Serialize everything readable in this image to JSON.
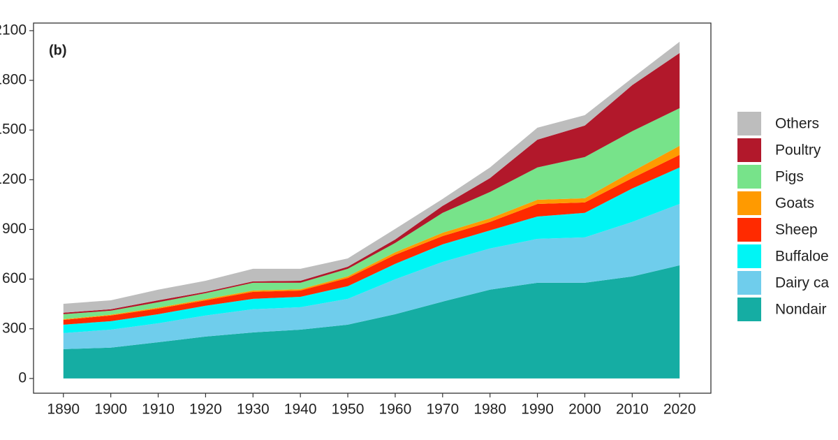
{
  "chart_data": {
    "type": "stacked-area",
    "annotation": "(b)",
    "x": [
      1890,
      1900,
      1910,
      1920,
      1930,
      1940,
      1950,
      1960,
      1970,
      1980,
      1990,
      2000,
      2010,
      2020
    ],
    "xlim": [
      1883.7,
      2026.6
    ],
    "xticks": [
      1890,
      1900,
      1910,
      1920,
      1930,
      1940,
      1950,
      1960,
      1970,
      1980,
      1990,
      2000,
      2010,
      2020
    ],
    "ylim": [
      -89,
      2146
    ],
    "yticks": [
      0,
      300,
      600,
      900,
      1200,
      1500,
      1800,
      2100
    ],
    "series": [
      {
        "name": "Nondair",
        "color": "#15ada3",
        "values": [
          177,
          186,
          219,
          253,
          278,
          295,
          325,
          388,
          464,
          536,
          578,
          578,
          616,
          683
        ]
      },
      {
        "name": "Dairy ca",
        "color": "#6fcdec",
        "values": [
          97,
          109,
          114,
          127,
          140,
          135,
          156,
          211,
          240,
          249,
          265,
          274,
          329,
          371
        ]
      },
      {
        "name": "Buffaloe",
        "color": "#00f5f5",
        "values": [
          51,
          51,
          55,
          59,
          63,
          63,
          76,
          93,
          106,
          109,
          135,
          148,
          202,
          220
        ]
      },
      {
        "name": "Sheep",
        "color": "#ff2a00",
        "values": [
          29,
          34,
          34,
          33,
          42,
          38,
          50,
          55,
          50,
          51,
          76,
          63,
          63,
          76
        ]
      },
      {
        "name": "Goats",
        "color": "#ff9a00",
        "values": [
          4,
          5,
          6,
          7,
          8,
          8,
          10,
          15,
          20,
          22,
          25,
          25,
          40,
          55
        ]
      },
      {
        "name": "Pigs",
        "color": "#77e38a",
        "values": [
          30,
          24,
          32,
          36,
          47,
          39,
          45,
          56,
          120,
          159,
          195,
          249,
          243,
          227
        ]
      },
      {
        "name": "Poultry",
        "color": "#b2182b",
        "values": [
          9,
          9,
          12,
          8,
          8,
          12,
          13,
          21,
          42,
          84,
          168,
          190,
          278,
          333
        ]
      },
      {
        "name": "Others",
        "color": "#bdbdbd",
        "values": [
          54,
          54,
          64,
          67,
          76,
          72,
          50,
          64,
          42,
          64,
          72,
          63,
          43,
          68
        ]
      }
    ]
  }
}
